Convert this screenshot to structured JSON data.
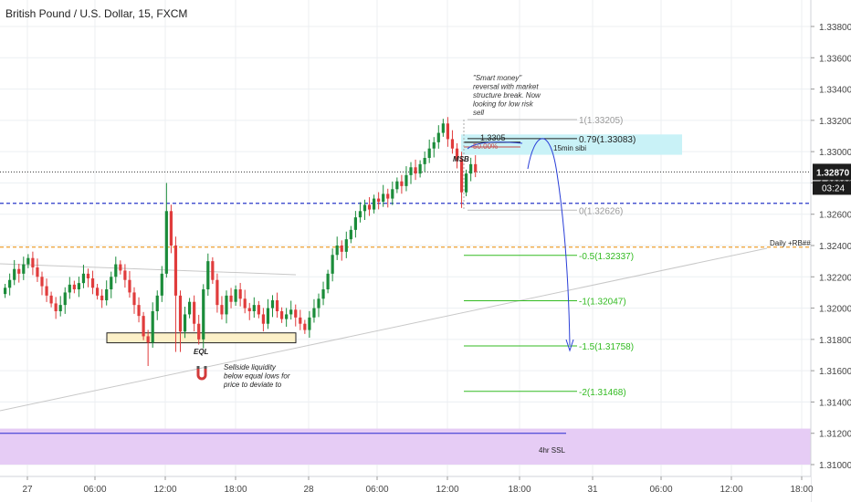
{
  "header": {
    "title": "British Pound / U.S. Dollar, 15, FXCM"
  },
  "colors": {
    "up": "#1b8c3a",
    "down": "#e03c3c",
    "grid": "#eceff2",
    "price_label_bg": "#1d1d1d",
    "fib_green": "#33bb22",
    "fib_gray": "#999999",
    "blue_dashed": "#2a38c9",
    "orange_dashed": "#f0a030",
    "zone_purple": "#e6ccf5",
    "zone_cyan": "#c9f2f7",
    "zone_yellow": "#fcf0c8",
    "arrow_blue": "#2a3fd8"
  },
  "chart_data": {
    "type": "candlestick",
    "title": "British Pound / U.S. Dollar, 15, FXCM",
    "ylim": [
      1.309,
      1.34
    ],
    "y_ticks": [
      "1.33800",
      "1.33600",
      "1.33400",
      "1.33200",
      "1.33000",
      "1.32800",
      "1.32600",
      "1.32400",
      "1.32200",
      "1.32000",
      "1.31800",
      "1.31600",
      "1.31400",
      "1.31200",
      "1.31000"
    ],
    "x_ticks": [
      "27",
      "06:00",
      "12:00",
      "18:00",
      "28",
      "06:00",
      "12:00",
      "18:00",
      "31",
      "06:00",
      "12:00",
      "18:00"
    ],
    "current_price": "1.32870",
    "countdown": "03:24",
    "series_close": [
      1.3213,
      1.3218,
      1.3225,
      1.3222,
      1.3228,
      1.3232,
      1.3226,
      1.322,
      1.3214,
      1.3208,
      1.3203,
      1.3198,
      1.3202,
      1.321,
      1.3215,
      1.3212,
      1.3216,
      1.3222,
      1.3219,
      1.3213,
      1.3208,
      1.3205,
      1.3212,
      1.322,
      1.3228,
      1.3224,
      1.3218,
      1.321,
      1.3202,
      1.3195,
      1.3182,
      1.3178,
      1.3198,
      1.3208,
      1.3222,
      1.3262,
      1.324,
      1.3208,
      1.3185,
      1.3196,
      1.3204,
      1.319,
      1.318,
      1.3212,
      1.323,
      1.3218,
      1.3202,
      1.3196,
      1.3208,
      1.3204,
      1.3212,
      1.3206,
      1.32,
      1.3198,
      1.3202,
      1.3196,
      1.319,
      1.32,
      1.3205,
      1.3198,
      1.3193,
      1.3196,
      1.3199,
      1.3194,
      1.319,
      1.3186,
      1.3194,
      1.32,
      1.3206,
      1.3212,
      1.3222,
      1.3234,
      1.324,
      1.3236,
      1.3244,
      1.325,
      1.3258,
      1.3262,
      1.3266,
      1.3263,
      1.327,
      1.3268,
      1.3273,
      1.327,
      1.3276,
      1.3281,
      1.3278,
      1.3285,
      1.329,
      1.3286,
      1.3292,
      1.3296,
      1.3302,
      1.3306,
      1.3312,
      1.3318,
      1.3308,
      1.3302,
      1.3295,
      1.3274,
      1.3286,
      1.3292,
      1.3287
    ],
    "annotations": [
      {
        "text": "\"Smart money\" reversal with market structure break. Now looking for low risk sell"
      },
      {
        "text": "15min sibi"
      },
      {
        "text": "MSB"
      },
      {
        "text": "EQL"
      },
      {
        "text": "Sellside liquidity below equal lows for price to deviate to"
      },
      {
        "text": "Daily +RB##"
      },
      {
        "text": "4hr SSL"
      },
      {
        "text": "1.3305"
      },
      {
        "text": "50.00%"
      }
    ],
    "fib_levels": [
      {
        "label": "1(1.33205)",
        "value": 1.33205,
        "color": "gray"
      },
      {
        "label": "0.79(1.33083)",
        "value": 1.33083,
        "color": "black"
      },
      {
        "label": "0(1.32626)",
        "value": 1.32626,
        "color": "gray"
      },
      {
        "label": "-0.5(1.32337)",
        "value": 1.32337,
        "color": "green"
      },
      {
        "label": "-1(1.32047)",
        "value": 1.32047,
        "color": "green"
      },
      {
        "label": "-1.5(1.31758)",
        "value": 1.31758,
        "color": "green"
      },
      {
        "label": "-2(1.31468)",
        "value": 1.31468,
        "color": "green"
      }
    ],
    "levels": {
      "blue_dashed": 1.3267,
      "orange_dashed": 1.3239,
      "current_dotted": 1.3287,
      "ssl_4hr": 1.312
    },
    "zones": {
      "purple": [
        1.31,
        1.3123
      ],
      "cyan": [
        1.3298,
        1.3311
      ],
      "yellow": [
        1.3179,
        1.3183
      ]
    }
  }
}
